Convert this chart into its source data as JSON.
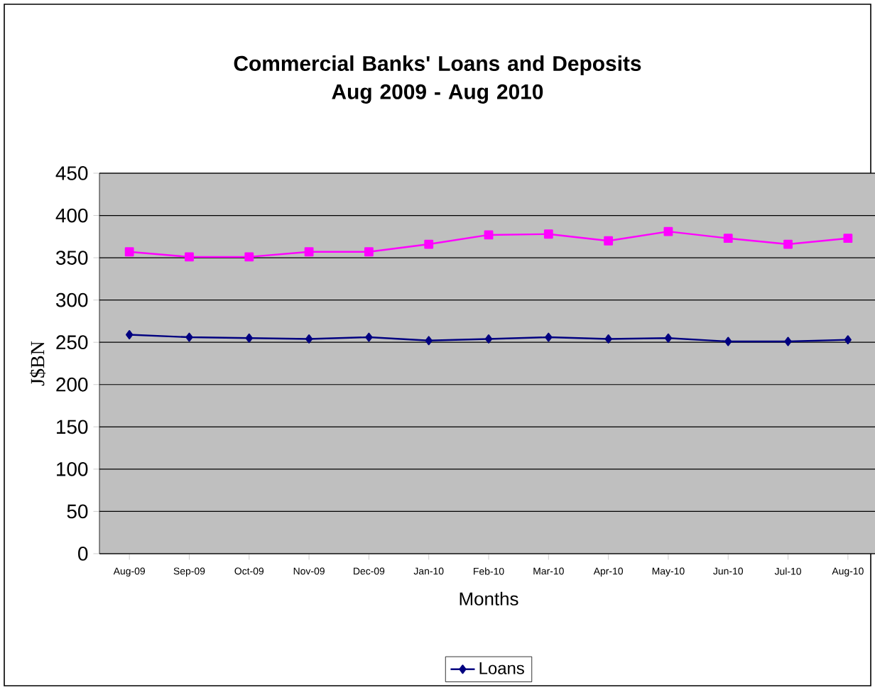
{
  "chart_data": {
    "type": "line",
    "title": "Commercial Banks' Loans and Deposits\nAug 2009 - Aug 2010",
    "xlabel": "Months",
    "ylabel": "J$BN",
    "categories": [
      "Aug-09",
      "Sep-09",
      "Oct-09",
      "Nov-09",
      "Dec-09",
      "Jan-10",
      "Feb-10",
      "Mar-10",
      "Apr-10",
      "May-10",
      "Jun-10",
      "Jul-10",
      "Aug-10"
    ],
    "series": [
      {
        "name": "Loans",
        "color": "#000080",
        "marker": "diamond",
        "values": [
          259,
          256,
          255,
          254,
          256,
          252,
          254,
          256,
          254,
          255,
          251,
          251,
          253
        ]
      },
      {
        "color": "#ff00ff",
        "marker": "square",
        "values": [
          357,
          351,
          351,
          357,
          357,
          366,
          377,
          378,
          370,
          381,
          373,
          366,
          373
        ]
      }
    ],
    "ylim": [
      0,
      450
    ],
    "yticks": [
      0,
      50,
      100,
      150,
      200,
      250,
      300,
      350,
      400,
      450
    ],
    "grid": "y",
    "legend": "bottom",
    "line_style": "solid"
  }
}
